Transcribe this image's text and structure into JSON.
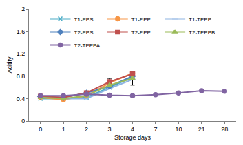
{
  "chart_data": {
    "type": "line",
    "x_label": "Storage days",
    "y_label": "Acitity",
    "categories": [
      "0",
      "1",
      "2",
      "3",
      "4",
      "7",
      "10",
      "21",
      "28"
    ],
    "ylim": [
      0,
      2
    ],
    "yticks": [
      0,
      0.4,
      0.8,
      1.2,
      1.6,
      2
    ],
    "grid": false,
    "legend": "top",
    "series": [
      {
        "name": "T1-EPS",
        "color": "#4bacc6",
        "marker": "x",
        "values": [
          0.4,
          0.4,
          0.42,
          0.6,
          0.78,
          null,
          null,
          null,
          null
        ]
      },
      {
        "name": "T1-EPP",
        "color": "#f79646",
        "marker": "circle",
        "values": [
          0.42,
          0.38,
          0.45,
          0.68,
          0.85,
          null,
          null,
          null,
          null
        ]
      },
      {
        "name": "T1-TEPP",
        "color": "#8db3e2",
        "marker": "line",
        "values": [
          0.44,
          0.4,
          0.4,
          0.58,
          0.74,
          null,
          null,
          null,
          null
        ],
        "errors": [
          null,
          null,
          null,
          null,
          0.1,
          null,
          null,
          null,
          null
        ]
      },
      {
        "name": "T2-EPS",
        "color": "#4f81bd",
        "marker": "diamond",
        "values": [
          0.44,
          0.42,
          0.5,
          0.62,
          0.8,
          null,
          null,
          null,
          null
        ]
      },
      {
        "name": "T2-EPP",
        "color": "#c0504d",
        "marker": "square",
        "values": [
          0.44,
          0.42,
          0.5,
          0.7,
          0.84,
          null,
          null,
          null,
          null
        ],
        "errors": [
          null,
          null,
          null,
          0.06,
          null,
          null,
          null,
          null,
          null
        ]
      },
      {
        "name": "T2-TEPPB",
        "color": "#9bbb59",
        "marker": "triangle",
        "values": [
          0.42,
          0.4,
          0.45,
          0.64,
          0.76,
          null,
          null,
          null,
          null
        ]
      },
      {
        "name": "T2-TEPPA",
        "color": "#8064a2",
        "marker": "circle",
        "values": [
          0.45,
          0.45,
          0.48,
          0.46,
          0.45,
          0.47,
          0.5,
          0.54,
          0.53
        ]
      }
    ]
  }
}
